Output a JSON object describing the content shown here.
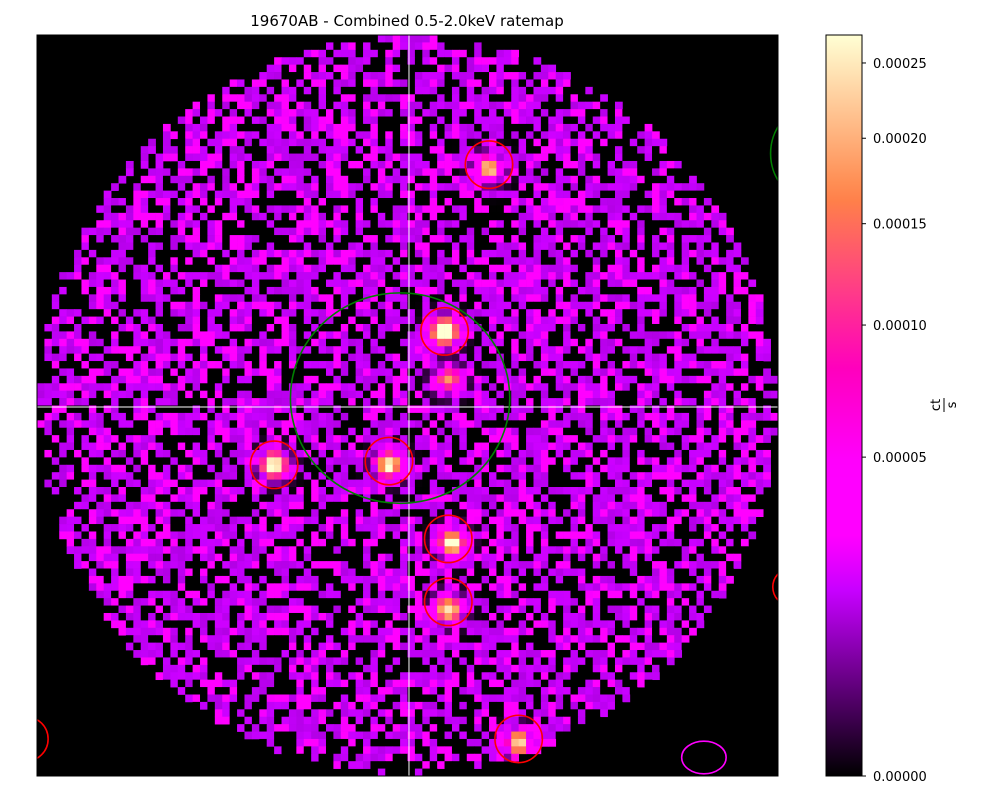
{
  "chart_data": {
    "type": "heatmap",
    "title": "19670AB - Combined 0.5-2.0keV ratemap",
    "xlabel": "",
    "ylabel": "",
    "colormap": "gnuplot2",
    "colorscale": "power",
    "grid": false,
    "colorbar": {
      "label_numerator": "ct",
      "label_denominator": "s",
      "range": [
        0.0,
        0.00027
      ],
      "ticks": [
        {
          "value": 0.00025,
          "label": "0.00025"
        },
        {
          "value": 0.0002,
          "label": "0.00020"
        },
        {
          "value": 0.00015,
          "label": "0.00015"
        },
        {
          "value": 0.0001,
          "label": "0.00010"
        },
        {
          "value": 5e-05,
          "label": "0.00005"
        },
        {
          "value": 0.0,
          "label": "0.00000"
        }
      ]
    },
    "field_of_view": {
      "shape": "circle",
      "grid_size": 100
    },
    "background_level": 1.6e-05,
    "sources": [
      {
        "x": 55.0,
        "y": 40.0,
        "peak": 0.00027
      },
      {
        "x": 32.0,
        "y": 58.0,
        "peak": 0.00022
      },
      {
        "x": 47.5,
        "y": 58.0,
        "peak": 0.0002
      },
      {
        "x": 56.0,
        "y": 68.5,
        "peak": 0.00021
      },
      {
        "x": 55.5,
        "y": 77.5,
        "peak": 0.00019
      },
      {
        "x": 61.0,
        "y": 18.0,
        "peak": 0.00017
      },
      {
        "x": 65.0,
        "y": 95.5,
        "peak": 0.00017
      },
      {
        "x": 55.5,
        "y": 46.5,
        "peak": 0.00012
      }
    ],
    "crosshair": {
      "x": 50.2,
      "y": 50.2
    },
    "regions": [
      {
        "shape": "ellipse",
        "color": "#ff0000",
        "cx": 55.0,
        "cy": 40.0,
        "rx": 3.2,
        "ry": 3.2
      },
      {
        "shape": "ellipse",
        "color": "#ff0000",
        "cx": 32.0,
        "cy": 58.0,
        "rx": 3.2,
        "ry": 3.2
      },
      {
        "shape": "ellipse",
        "color": "#ff0000",
        "cx": 47.5,
        "cy": 57.5,
        "rx": 3.2,
        "ry": 3.2
      },
      {
        "shape": "ellipse",
        "color": "#ff0000",
        "cx": 55.5,
        "cy": 68.0,
        "rx": 3.2,
        "ry": 3.2
      },
      {
        "shape": "ellipse",
        "color": "#ff0000",
        "cx": 55.5,
        "cy": 76.5,
        "rx": 3.2,
        "ry": 3.2
      },
      {
        "shape": "ellipse",
        "color": "#ff0000",
        "cx": 61.0,
        "cy": 17.5,
        "rx": 3.2,
        "ry": 3.2
      },
      {
        "shape": "ellipse",
        "color": "#ff0000",
        "cx": 65.0,
        "cy": 95.0,
        "rx": 3.2,
        "ry": 3.2
      },
      {
        "shape": "ellipse",
        "color": "#ff0000",
        "cx": -1.5,
        "cy": 95.0,
        "rx": 3.0,
        "ry": 3.0
      },
      {
        "shape": "ellipse",
        "color": "#ff0000",
        "cx": 101.5,
        "cy": 74.5,
        "rx": 2.2,
        "ry": 2.4
      },
      {
        "shape": "ellipse",
        "color": "#ff00ff",
        "cx": 90.0,
        "cy": 97.5,
        "rx": 3.0,
        "ry": 2.2
      },
      {
        "shape": "ellipse",
        "color": "#008000",
        "cx": 49.0,
        "cy": 49.0,
        "rx": 14.8,
        "ry": 14.2
      },
      {
        "shape": "ellipse",
        "color": "#008000",
        "cx": 104.0,
        "cy": 16.0,
        "rx": 5.0,
        "ry": 6.0
      }
    ],
    "x_minor_ticks": [
      2,
      22.5,
      43,
      63.5,
      84
    ],
    "y_minor_ticks": []
  }
}
